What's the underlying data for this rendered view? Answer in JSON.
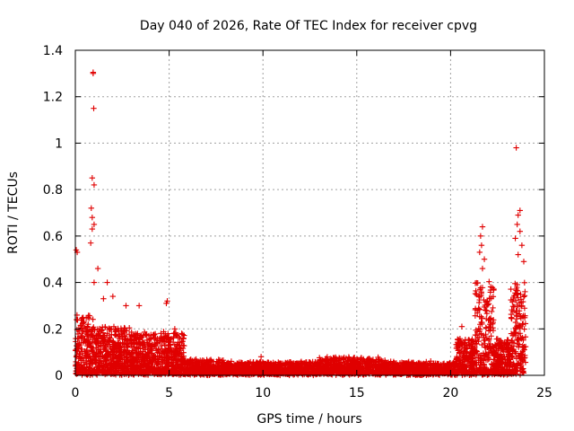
{
  "chart_data": {
    "type": "scatter",
    "title": "Day 040 of 2026, Rate Of TEC Index for receiver cpvg",
    "xlabel": "GPS time / hours",
    "ylabel": "ROTI / TECUs",
    "xlim": [
      0,
      25
    ],
    "ylim": [
      0,
      1.4
    ],
    "xticks": [
      0,
      5,
      10,
      15,
      20,
      25
    ],
    "yticks": [
      0,
      0.2,
      0.4,
      0.6,
      0.8,
      1,
      1.2,
      1.4
    ],
    "xtick_labels": [
      "0",
      "5",
      "10",
      "15",
      "20",
      "25"
    ],
    "ytick_labels": [
      "0",
      "0.2",
      "0.4",
      "0.6",
      "0.8",
      "1",
      "1.2",
      "1.4"
    ],
    "grid": true,
    "marker": "plus",
    "color": "#e00000",
    "series": [
      {
        "name": "ROTI",
        "highlighted_points": [
          [
            0.95,
            1.305
          ],
          [
            0.95,
            1.3
          ],
          [
            0.98,
            1.15
          ],
          [
            23.5,
            0.98
          ],
          [
            0.9,
            0.85
          ],
          [
            1.0,
            0.82
          ],
          [
            0.85,
            0.72
          ],
          [
            0.9,
            0.68
          ],
          [
            1.0,
            0.65
          ],
          [
            0.9,
            0.63
          ],
          [
            0.82,
            0.57
          ],
          [
            0.05,
            0.54
          ],
          [
            0.1,
            0.53
          ],
          [
            1.2,
            0.46
          ],
          [
            1.0,
            0.4
          ],
          [
            1.7,
            0.4
          ],
          [
            23.7,
            0.71
          ],
          [
            23.6,
            0.69
          ],
          [
            23.55,
            0.65
          ],
          [
            23.7,
            0.62
          ],
          [
            23.45,
            0.59
          ],
          [
            23.8,
            0.56
          ],
          [
            23.6,
            0.52
          ],
          [
            23.9,
            0.49
          ],
          [
            21.7,
            0.64
          ],
          [
            21.6,
            0.6
          ],
          [
            21.65,
            0.56
          ],
          [
            21.55,
            0.53
          ],
          [
            21.8,
            0.5
          ],
          [
            21.7,
            0.46
          ],
          [
            4.9,
            0.32
          ],
          [
            4.85,
            0.31
          ],
          [
            2.7,
            0.3
          ],
          [
            3.4,
            0.3
          ],
          [
            1.5,
            0.33
          ],
          [
            20.6,
            0.21
          ],
          [
            2.0,
            0.34
          ],
          [
            5.3,
            0.2
          ],
          [
            9.9,
            0.08
          ],
          [
            14.8,
            0.07
          ]
        ],
        "envelope": [
          {
            "x_start": 0.0,
            "x_end": 1.0,
            "y_typical_max": 0.25,
            "y_min": 0.0
          },
          {
            "x_start": 1.0,
            "x_end": 3.0,
            "y_typical_max": 0.2,
            "y_min": 0.0
          },
          {
            "x_start": 3.0,
            "x_end": 5.8,
            "y_typical_max": 0.18,
            "y_min": 0.0
          },
          {
            "x_start": 5.8,
            "x_end": 8.0,
            "y_typical_max": 0.06,
            "y_min": 0.0
          },
          {
            "x_start": 8.0,
            "x_end": 13.0,
            "y_typical_max": 0.05,
            "y_min": 0.0
          },
          {
            "x_start": 13.0,
            "x_end": 16.5,
            "y_typical_max": 0.07,
            "y_min": 0.0
          },
          {
            "x_start": 16.5,
            "x_end": 20.3,
            "y_typical_max": 0.05,
            "y_min": 0.0
          },
          {
            "x_start": 20.3,
            "x_end": 21.3,
            "y_typical_max": 0.15,
            "y_min": 0.0
          },
          {
            "x_start": 21.3,
            "x_end": 22.3,
            "y_typical_max": 0.4,
            "y_min": 0.0
          },
          {
            "x_start": 22.3,
            "x_end": 23.2,
            "y_typical_max": 0.15,
            "y_min": 0.0
          },
          {
            "x_start": 23.2,
            "x_end": 24.0,
            "y_typical_max": 0.4,
            "y_min": 0.0
          }
        ]
      }
    ]
  }
}
